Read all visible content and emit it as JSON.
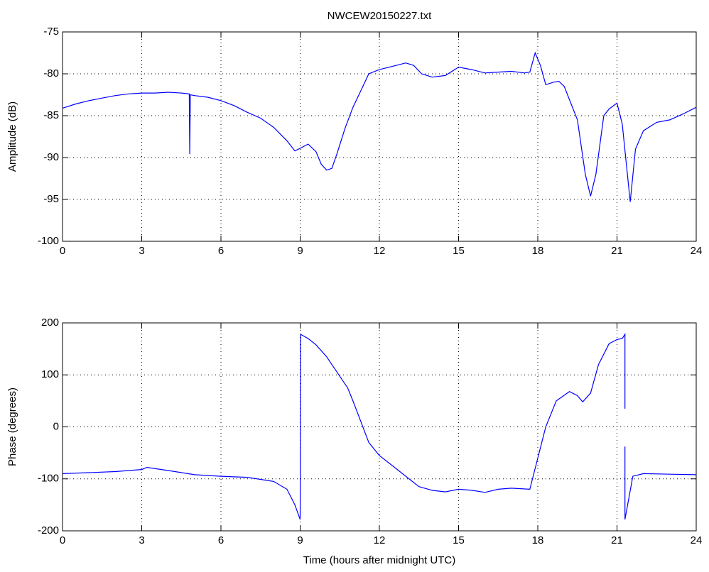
{
  "chart_data": [
    {
      "type": "line",
      "title": "NWCEW20150227.txt",
      "y_label": "Amplitude (dB)",
      "color": "#0000ff",
      "grid": true,
      "xlim": [
        0,
        24
      ],
      "xticks": [
        0,
        3,
        6,
        9,
        12,
        15,
        18,
        21,
        24
      ],
      "ylim": [
        -100,
        -75
      ],
      "yticks": [
        -100,
        -95,
        -90,
        -85,
        -80,
        -75
      ],
      "x": [
        0,
        0.5,
        1,
        1.5,
        2,
        2.5,
        3,
        3.5,
        4,
        4.5,
        4.8,
        4.82,
        4.84,
        5,
        5.5,
        6,
        6.5,
        7,
        7.5,
        8,
        8.5,
        8.8,
        9,
        9.3,
        9.6,
        9.8,
        10,
        10.2,
        10.4,
        10.7,
        11,
        11.3,
        11.6,
        12,
        12.5,
        13,
        13.3,
        13.6,
        14,
        14.5,
        15,
        15.5,
        16,
        16.5,
        17,
        17.5,
        17.7,
        17.9,
        18.1,
        18.3,
        18.6,
        18.8,
        19,
        19.5,
        19.8,
        20,
        20.2,
        20.5,
        20.7,
        21,
        21.2,
        21.5,
        21.7,
        22,
        22.5,
        23,
        23.5,
        24
      ],
      "values": [
        -84.1,
        -83.6,
        -83.2,
        -82.9,
        -82.6,
        -82.4,
        -82.3,
        -82.3,
        -82.2,
        -82.3,
        -82.4,
        -89.6,
        -82.5,
        -82.6,
        -82.8,
        -83.2,
        -83.8,
        -84.6,
        -85.3,
        -86.4,
        -88.0,
        -89.2,
        -88.9,
        -88.4,
        -89.3,
        -90.8,
        -91.5,
        -91.3,
        -89.5,
        -86.5,
        -84.0,
        -82.0,
        -80.0,
        -79.5,
        -79.1,
        -78.7,
        -79.0,
        -80.0,
        -80.4,
        -80.2,
        -79.2,
        -79.5,
        -79.9,
        -79.8,
        -79.7,
        -79.9,
        -79.8,
        -77.5,
        -79.0,
        -81.3,
        -81.0,
        -80.9,
        -81.5,
        -85.5,
        -92,
        -94.6,
        -92,
        -85,
        -84.2,
        -83.5,
        -86,
        -95.3,
        -89,
        -86.8,
        -85.8,
        -85.5,
        -84.8,
        -84.0
      ]
    },
    {
      "type": "line",
      "x_label": "Time (hours after midnight UTC)",
      "y_label": "Phase (degrees)",
      "color": "#0000ff",
      "grid": true,
      "xlim": [
        0,
        24
      ],
      "xticks": [
        0,
        3,
        6,
        9,
        12,
        15,
        18,
        21,
        24
      ],
      "ylim": [
        -200,
        200
      ],
      "yticks": [
        -200,
        -100,
        0,
        100,
        200
      ],
      "x": [
        0,
        1,
        2,
        3,
        3.2,
        4,
        5,
        6,
        7,
        8,
        8.5,
        8.8,
        9,
        9.02,
        9.3,
        9.6,
        10,
        10.4,
        10.8,
        11,
        11.3,
        11.6,
        12,
        12.5,
        13,
        13.5,
        14,
        14.5,
        15,
        15.5,
        16,
        16.5,
        17,
        17.7,
        18,
        18.3,
        18.7,
        19.2,
        19.5,
        19.7,
        20,
        20.3,
        20.7,
        21,
        21.2,
        21.3,
        21.3,
        21.3,
        21.3,
        21.3,
        21.6,
        22,
        23,
        24
      ],
      "values": [
        -90,
        -88,
        -86,
        -82,
        -78,
        -84,
        -92,
        -95,
        -97,
        -105,
        -120,
        -150,
        -178,
        178,
        170,
        158,
        135,
        105,
        75,
        50,
        10,
        -30,
        -55,
        -75,
        -95,
        -115,
        -122,
        -125,
        -120,
        -122,
        -126,
        -120,
        -118,
        -120,
        -60,
        0,
        50,
        68,
        60,
        48,
        65,
        120,
        160,
        168,
        170,
        178,
        35,
        null,
        -38,
        -178,
        -95,
        -90,
        -91,
        -92
      ]
    }
  ]
}
